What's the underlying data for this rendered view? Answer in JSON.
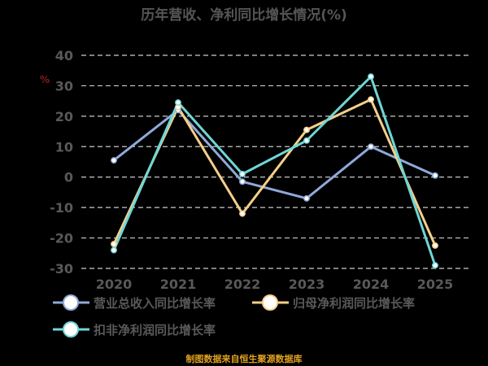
{
  "chart_data": {
    "type": "line",
    "title": "历年营收、净利同比增长情况(%)",
    "ylabel": "%",
    "categories": [
      "2020",
      "2021",
      "2022",
      "2023",
      "2024",
      "2025"
    ],
    "ylim": [
      -30,
      40
    ],
    "yticks": [
      40,
      30,
      20,
      10,
      0,
      -10,
      -20,
      -30
    ],
    "grid": true,
    "legend_position": "bottom",
    "series": [
      {
        "name": "营业总收入同比增长率",
        "color": "#8fa9d9",
        "values": [
          5.5,
          22,
          -1.5,
          -7,
          10,
          0.5
        ]
      },
      {
        "name": "归母净利润同比增长率",
        "color": "#f5cf8a",
        "values": [
          -22,
          23,
          -12,
          15.5,
          25.5,
          -22.5
        ]
      },
      {
        "name": "扣非净利润同比增长率",
        "color": "#6fd6d6",
        "values": [
          -24,
          24.5,
          1,
          12,
          33,
          -29
        ]
      }
    ]
  },
  "footer": {
    "source": "制图数据来自恒生聚源数据库"
  }
}
